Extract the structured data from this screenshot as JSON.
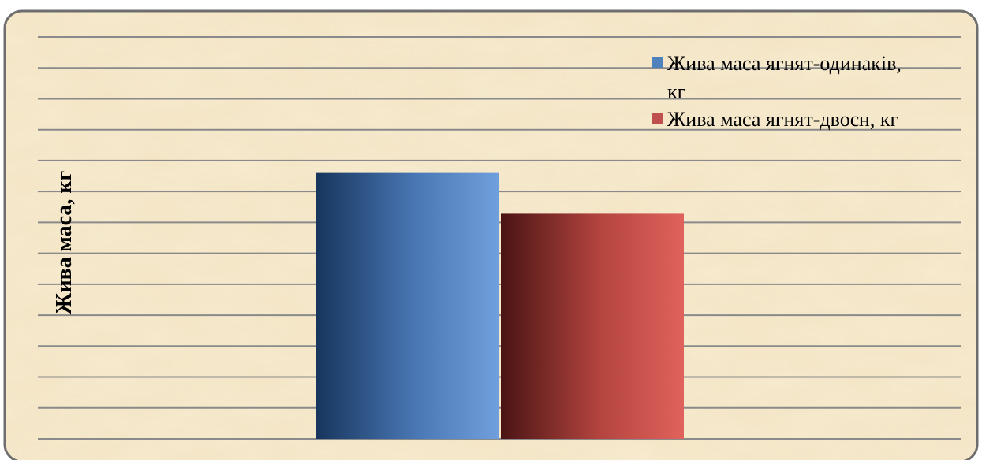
{
  "chart_data": {
    "type": "bar",
    "title": "",
    "xlabel": "",
    "ylabel": "Жива маса, кг",
    "categories": [
      ""
    ],
    "series": [
      {
        "name": "Жива маса ягнят-одинаків, кг",
        "values": [
          4.3
        ]
      },
      {
        "name": "Жива маса ягнят-двоєн, кг",
        "values": [
          3.64
        ]
      }
    ],
    "ylim": [
      0,
      6.5
    ],
    "grid": true,
    "grid_step": 0.5,
    "legend_position": "top-right",
    "tick_labels_visible": false,
    "colors": {
      "series_1": "#4f81bd",
      "series_2": "#c0504d",
      "background": "#f2e3c2",
      "frame_border": "#6e6e6e",
      "gridline": "#8a8a8a"
    }
  }
}
